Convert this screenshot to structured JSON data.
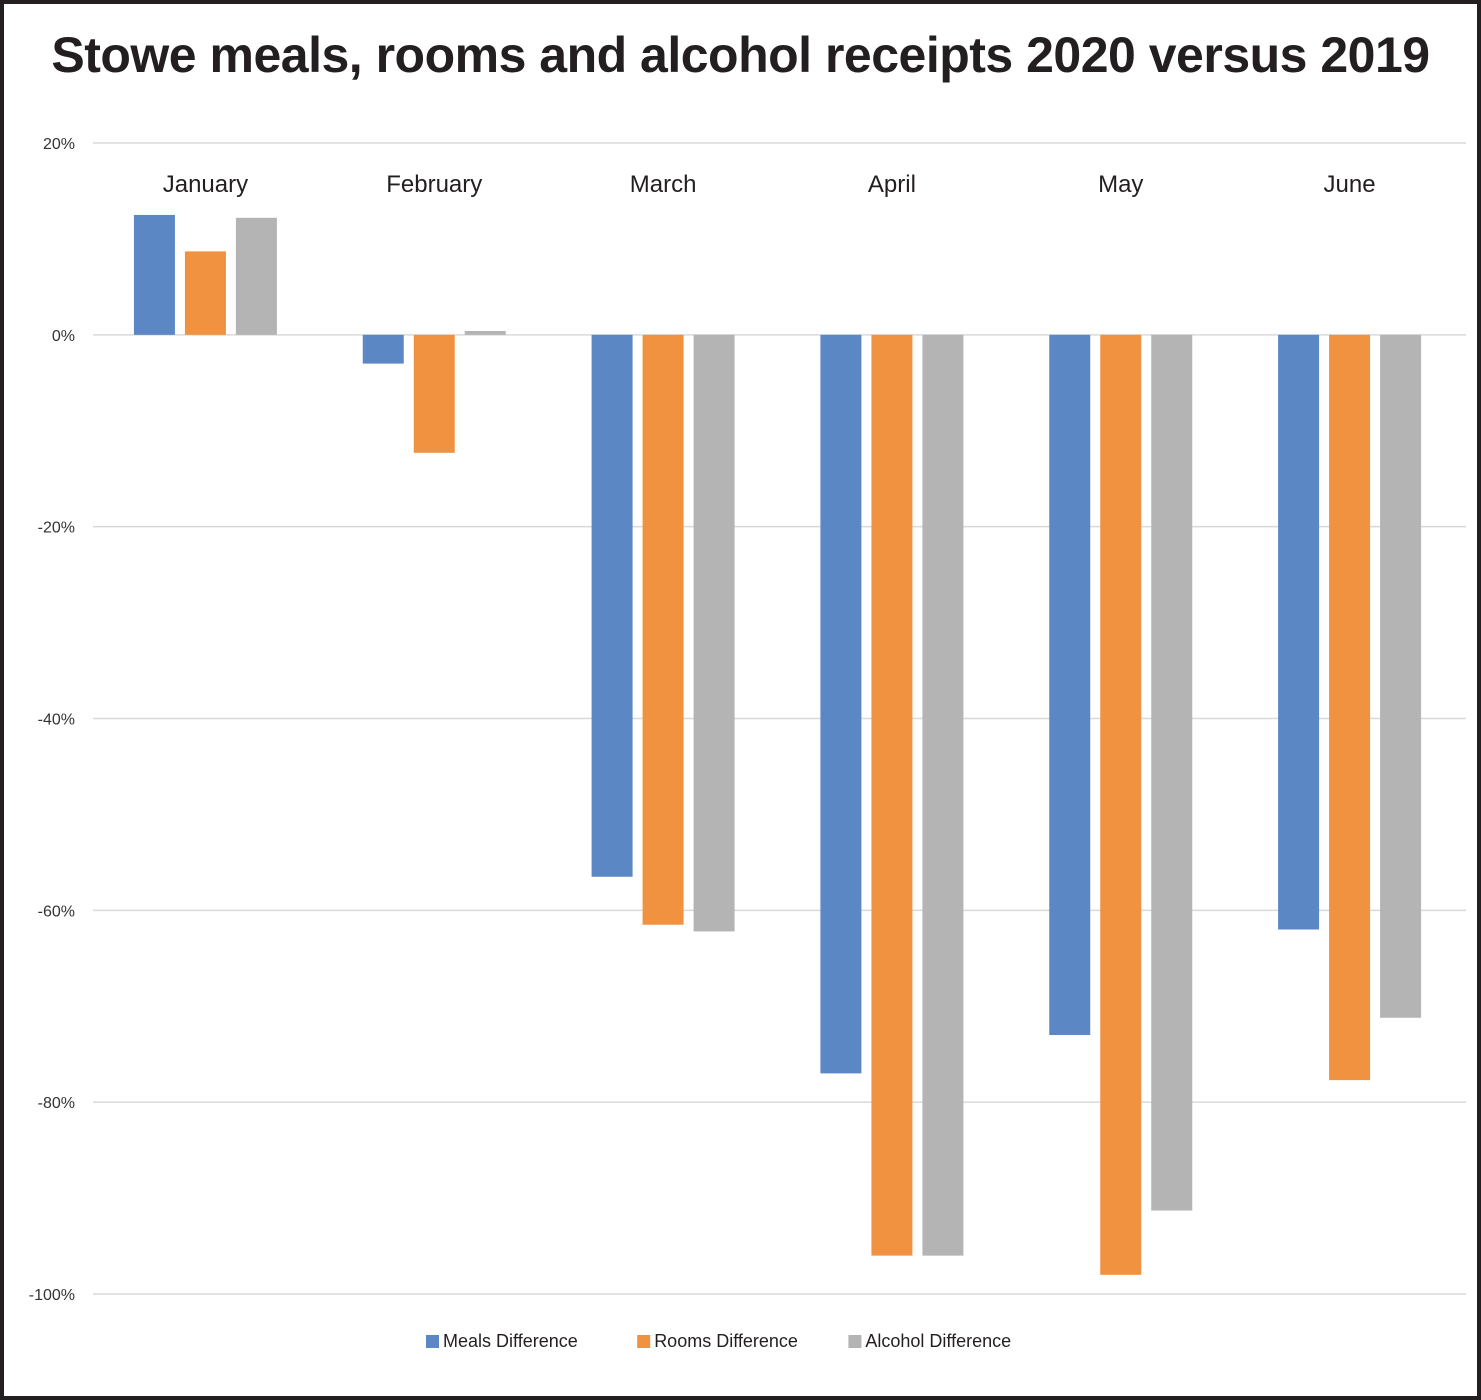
{
  "chart_data": {
    "type": "bar",
    "title": "Stowe meals, rooms and alcohol receipts 2020 versus 2019",
    "xlabel": "",
    "ylabel": "",
    "categories": [
      "January",
      "February",
      "March",
      "April",
      "May",
      "June"
    ],
    "ylim": [
      -100,
      20
    ],
    "yticks": [
      20,
      0,
      -20,
      -40,
      -60,
      -80,
      -100
    ],
    "ytick_labels": [
      "20%",
      "0%",
      "-20%",
      "-40%",
      "-60%",
      "-80%",
      "-100%"
    ],
    "grid": true,
    "legend_position": "bottom",
    "series": [
      {
        "name": "Meals Difference",
        "color": "#5b87c5",
        "values": [
          12.5,
          -3,
          -56.5,
          -77,
          -73,
          -62
        ]
      },
      {
        "name": "Rooms Difference",
        "color": "#f09240",
        "values": [
          8.7,
          -12.3,
          -61.5,
          -96,
          -98,
          -77.7
        ]
      },
      {
        "name": "Alcohol Difference",
        "color": "#b4b4b4",
        "values": [
          12.2,
          0.4,
          -62.2,
          -96,
          -91.3,
          -71.2
        ]
      }
    ]
  }
}
